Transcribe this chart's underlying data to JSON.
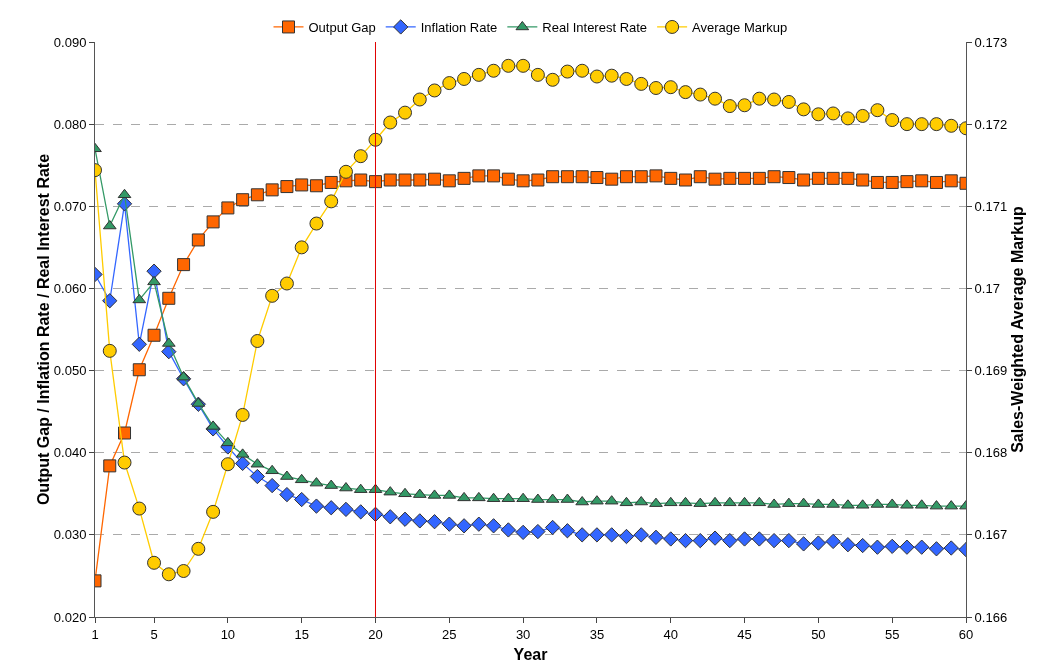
{
  "chart_data": {
    "type": "line",
    "xlabel": "Year",
    "ylabel": "Output Gap / Inflation Rate / Real Interest Rate",
    "y2label": "Sales-Weighted Average Markup",
    "x": [
      1,
      2,
      3,
      4,
      5,
      6,
      7,
      8,
      9,
      10,
      11,
      12,
      13,
      14,
      15,
      16,
      17,
      18,
      19,
      20,
      21,
      22,
      23,
      24,
      25,
      26,
      27,
      28,
      29,
      30,
      31,
      32,
      33,
      34,
      35,
      36,
      37,
      38,
      39,
      40,
      41,
      42,
      43,
      44,
      45,
      46,
      47,
      48,
      49,
      50,
      51,
      52,
      53,
      54,
      55,
      56,
      57,
      58,
      59,
      60
    ],
    "xlim": [
      1,
      60
    ],
    "xticks": [
      1,
      5,
      10,
      15,
      20,
      25,
      30,
      35,
      40,
      45,
      50,
      55,
      60
    ],
    "ylim": [
      0.02,
      0.09
    ],
    "yticks": [
      {
        "value": 0.02,
        "label": "0.020"
      },
      {
        "value": 0.03,
        "label": "0.030"
      },
      {
        "value": 0.04,
        "label": "0.040"
      },
      {
        "value": 0.05,
        "label": "0.050"
      },
      {
        "value": 0.06,
        "label": "0.060"
      },
      {
        "value": 0.07,
        "label": "0.070"
      },
      {
        "value": 0.08,
        "label": "0.080"
      },
      {
        "value": 0.09,
        "label": "0.090"
      }
    ],
    "y2lim": [
      0.166,
      0.173
    ],
    "y2ticks": [
      0.166,
      0.167,
      0.168,
      0.169,
      0.17,
      0.171,
      0.172,
      0.173
    ],
    "grid": "y",
    "legend": "top",
    "line_style": "solid",
    "ref_lines": [
      {
        "axis": "x",
        "value": 20,
        "color": "#e00000"
      }
    ],
    "series": [
      {
        "name": "Output Gap",
        "color": "#ff6600",
        "marker": "square",
        "values": [
          0.0244,
          0.0384,
          0.0424,
          0.0501,
          0.0543,
          0.0588,
          0.0629,
          0.0659,
          0.0681,
          0.0698,
          0.0708,
          0.0714,
          0.072,
          0.0724,
          0.0726,
          0.0725,
          0.0729,
          0.0731,
          0.0732,
          0.073,
          0.0732,
          0.0732,
          0.0732,
          0.0733,
          0.0731,
          0.0734,
          0.0737,
          0.0737,
          0.0733,
          0.0731,
          0.0732,
          0.0736,
          0.0736,
          0.0736,
          0.0735,
          0.0733,
          0.0736,
          0.0736,
          0.0737,
          0.0734,
          0.0732,
          0.0736,
          0.0733,
          0.0734,
          0.0734,
          0.0734,
          0.0736,
          0.0735,
          0.0732,
          0.0734,
          0.0734,
          0.0734,
          0.0732,
          0.0729,
          0.0729,
          0.073,
          0.0731,
          0.0729,
          0.0731,
          0.0728
        ]
      },
      {
        "name": "Inflation Rate",
        "color": "#3366ff",
        "marker": "diamond",
        "values": [
          0.0617,
          0.0585,
          0.0703,
          0.0532,
          0.0621,
          0.0523,
          0.049,
          0.0459,
          0.0429,
          0.0407,
          0.0387,
          0.0371,
          0.036,
          0.0349,
          0.0343,
          0.0335,
          0.0333,
          0.0331,
          0.0328,
          0.0325,
          0.0322,
          0.0319,
          0.0317,
          0.0316,
          0.0313,
          0.0311,
          0.0313,
          0.0311,
          0.0306,
          0.0303,
          0.0304,
          0.0309,
          0.0305,
          0.03,
          0.03,
          0.03,
          0.0298,
          0.03,
          0.0297,
          0.0295,
          0.0293,
          0.0293,
          0.0296,
          0.0293,
          0.0295,
          0.0295,
          0.0293,
          0.0293,
          0.0289,
          0.029,
          0.0292,
          0.0288,
          0.0287,
          0.0285,
          0.0286,
          0.0285,
          0.0285,
          0.0283,
          0.0284,
          0.0282
        ]
      },
      {
        "name": "Real Interest Rate",
        "color": "#339966",
        "marker": "triangle",
        "values": [
          0.077,
          0.0676,
          0.0714,
          0.0586,
          0.0608,
          0.0533,
          0.0492,
          0.046,
          0.0432,
          0.0412,
          0.0398,
          0.0386,
          0.0378,
          0.0371,
          0.0367,
          0.0363,
          0.036,
          0.0357,
          0.0355,
          0.0355,
          0.0352,
          0.035,
          0.0349,
          0.0348,
          0.0348,
          0.0345,
          0.0345,
          0.0344,
          0.0344,
          0.0344,
          0.0343,
          0.0343,
          0.0343,
          0.034,
          0.0341,
          0.0341,
          0.0339,
          0.034,
          0.0338,
          0.0339,
          0.0339,
          0.0338,
          0.0339,
          0.0339,
          0.0339,
          0.0339,
          0.0337,
          0.0338,
          0.0338,
          0.0337,
          0.0337,
          0.0336,
          0.0336,
          0.0337,
          0.0337,
          0.0336,
          0.0336,
          0.0335,
          0.0335,
          0.0335
        ]
      },
      {
        "name": "Average Markup",
        "color": "#ffcc00",
        "marker": "circle",
        "axis": "y2",
        "values": [
          0.17144,
          0.16924,
          0.16788,
          0.16732,
          0.16666,
          0.16652,
          0.16656,
          0.16683,
          0.16728,
          0.16786,
          0.16846,
          0.16936,
          0.16991,
          0.17006,
          0.1705,
          0.17079,
          0.17106,
          0.17142,
          0.17161,
          0.17181,
          0.17202,
          0.17214,
          0.1723,
          0.17241,
          0.1725,
          0.17255,
          0.1726,
          0.17265,
          0.17271,
          0.17271,
          0.1726,
          0.17254,
          0.17264,
          0.17265,
          0.17258,
          0.17259,
          0.17255,
          0.17249,
          0.17244,
          0.17245,
          0.17239,
          0.17236,
          0.17231,
          0.17222,
          0.17223,
          0.17231,
          0.1723,
          0.17227,
          0.17218,
          0.17212,
          0.17213,
          0.17207,
          0.1721,
          0.17217,
          0.17205,
          0.172,
          0.172,
          0.172,
          0.17198,
          0.17195
        ]
      }
    ]
  }
}
